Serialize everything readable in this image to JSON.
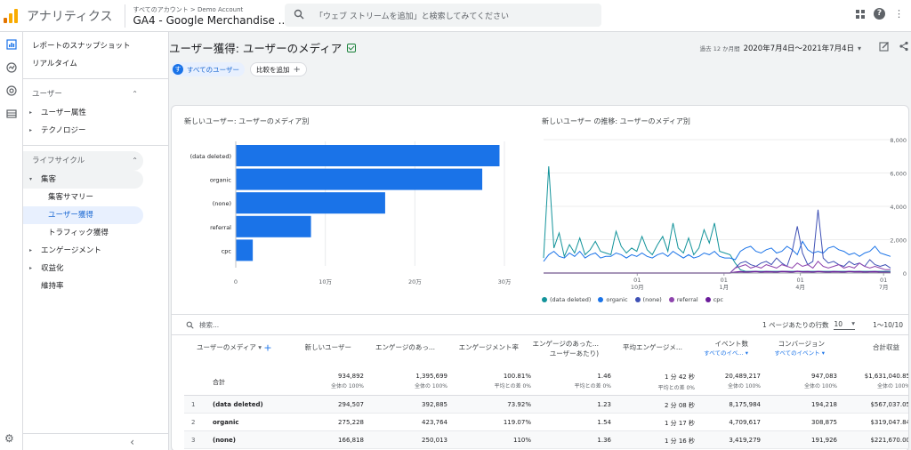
{
  "header": {
    "app_name": "アナリティクス",
    "account_path": "すべてのアカウント > Demo Account",
    "property": "GA4 - Google Merchandise ...",
    "search_placeholder": "「ウェブ ストリームを追加」と検索してみてください"
  },
  "sidebar": {
    "snapshot": "レポートのスナップショット",
    "realtime": "リアルタイム",
    "user_section": "ユーザー",
    "user_attr": "ユーザー属性",
    "tech": "テクノロジー",
    "lifecycle": "ライフサイクル",
    "acquisition": "集客",
    "acq_summary": "集客サマリー",
    "user_acq": "ユーザー獲得",
    "traffic_acq": "トラフィック獲得",
    "engagement": "エンゲージメント",
    "monetization": "収益化",
    "retention": "維持率"
  },
  "page": {
    "title": "ユーザー獲得: ユーザーのメディア",
    "date_prefix": "過去 12 か月間",
    "date_range": "2020年7月4日～2021年7月4日",
    "segment_badge": "す",
    "segment": "すべてのユーザー",
    "compare": "比較を追加"
  },
  "bar_chart": {
    "title": "新しいユーザー: ユーザーのメディア別"
  },
  "line_chart": {
    "title": "新しいユーザー の推移: ユーザーのメディア別"
  },
  "chart_data": [
    {
      "type": "bar",
      "orientation": "horizontal",
      "categories": [
        "(data deleted)",
        "organic",
        "(none)",
        "referral",
        "cpc"
      ],
      "values": [
        294507,
        275228,
        166818,
        84000,
        19000
      ],
      "x_ticks": [
        "0",
        "10万",
        "20万",
        "30万"
      ],
      "xlim": [
        0,
        300000
      ],
      "color": "#1a73e8"
    },
    {
      "type": "line",
      "y_ticks": [
        "8,000",
        "6,000",
        "4,000",
        "2,000",
        "0"
      ],
      "ylim": [
        0,
        8000
      ],
      "x_ticks": [
        {
          "top": "01",
          "bottom": "10月"
        },
        {
          "top": "01",
          "bottom": "1月"
        },
        {
          "top": "01",
          "bottom": "4月"
        },
        {
          "top": "01",
          "bottom": "7月"
        }
      ],
      "legend_position": "bottom",
      "series": [
        {
          "name": "(data deleted)",
          "color": "#12939a",
          "values": [
            900,
            6400,
            1500,
            2400,
            1000,
            1700,
            1200,
            2100,
            1100,
            1400,
            1900,
            1300,
            1200,
            1100,
            2500,
            1600,
            1200,
            1500,
            1300,
            2200,
            1400,
            1100,
            1700,
            2200,
            1300,
            3000,
            1500,
            1200,
            2100,
            1100,
            1500,
            2600,
            1800,
            3000,
            1300,
            1200,
            1100,
            600,
            200,
            100,
            100,
            100,
            100,
            100,
            100,
            100,
            100,
            100,
            100,
            100,
            100,
            100,
            100,
            100,
            100,
            100,
            100,
            100,
            100,
            100,
            100,
            100,
            100,
            100,
            100,
            100,
            100,
            100
          ]
        },
        {
          "name": "organic",
          "color": "#1a73e8",
          "values": [
            700,
            1100,
            1300,
            1000,
            900,
            1200,
            1000,
            1300,
            900,
            1100,
            1200,
            900,
            1000,
            1000,
            1200,
            1100,
            900,
            1100,
            1000,
            1200,
            1000,
            900,
            1100,
            1200,
            1000,
            1300,
            1100,
            900,
            1100,
            900,
            1000,
            1200,
            1100,
            1300,
            1000,
            900,
            900,
            800,
            1300,
            1500,
            1600,
            1300,
            1200,
            1400,
            1500,
            1200,
            1300,
            1600,
            1400,
            1100,
            1900,
            1400,
            1200,
            1300,
            1200,
            1500,
            1600,
            1400,
            1300,
            1100,
            1200,
            1000,
            1200,
            1300,
            1600,
            1200,
            1100,
            1000
          ]
        },
        {
          "name": "(none)",
          "color": "#3f51b5",
          "values": [
            0,
            0,
            0,
            0,
            0,
            0,
            0,
            0,
            0,
            0,
            0,
            0,
            0,
            0,
            0,
            0,
            0,
            0,
            0,
            0,
            0,
            0,
            0,
            0,
            0,
            0,
            0,
            0,
            0,
            0,
            0,
            0,
            0,
            0,
            0,
            0,
            0,
            300,
            600,
            700,
            500,
            400,
            600,
            700,
            500,
            900,
            600,
            400,
            1300,
            2800,
            1200,
            500,
            700,
            3800,
            900,
            600,
            700,
            500,
            400,
            700,
            500,
            600,
            400,
            800,
            500,
            400,
            500,
            300
          ]
        },
        {
          "name": "referral",
          "color": "#8e44ad",
          "values": [
            0,
            0,
            0,
            0,
            0,
            0,
            0,
            0,
            0,
            0,
            0,
            0,
            0,
            0,
            0,
            0,
            0,
            0,
            0,
            0,
            0,
            0,
            0,
            0,
            0,
            0,
            0,
            0,
            0,
            0,
            0,
            0,
            0,
            0,
            0,
            0,
            0,
            300,
            400,
            500,
            300,
            400,
            300,
            500,
            400,
            300,
            500,
            400,
            300,
            600,
            400,
            500,
            300,
            700,
            400,
            300,
            400,
            500,
            300,
            400,
            300,
            600,
            400,
            300,
            400,
            300,
            200,
            200
          ]
        },
        {
          "name": "cpc",
          "color": "#6a1b9a",
          "values": [
            0,
            0,
            0,
            0,
            0,
            0,
            0,
            0,
            0,
            0,
            0,
            0,
            0,
            0,
            0,
            0,
            0,
            0,
            0,
            0,
            0,
            0,
            0,
            0,
            0,
            0,
            0,
            0,
            0,
            0,
            0,
            0,
            0,
            0,
            0,
            0,
            0,
            50,
            80,
            60,
            70,
            90,
            60,
            80,
            70,
            60,
            90,
            80,
            60,
            100,
            70,
            80,
            60,
            90,
            70,
            60,
            80,
            70,
            60,
            90,
            70,
            80,
            60,
            70,
            80,
            60,
            50,
            40
          ]
        }
      ]
    }
  ],
  "table": {
    "search_placeholder": "検索...",
    "rows_per_page_label": "1 ページあたりの行数",
    "rows_per_page": "10",
    "range": "1〜10/10",
    "headers": {
      "dimension": "ユーザーのメディア",
      "new_users": "新しいユーザー",
      "engaged_sessions": "エンゲージのあっ...",
      "engagement_rate": "エンゲージメント率",
      "engaged_per_user_1": "エンゲージのあった...",
      "engaged_per_user_2": "ユーザーあたり)",
      "avg_engagement": "平均エンゲージメ...",
      "events": "イベント数",
      "events_sub": "すべてのイベ...",
      "conversions": "コンバージョン",
      "conversions_sub": "すべてのイベント",
      "revenue": "合計収益"
    },
    "total": {
      "label": "合計",
      "new_users": "934,892",
      "new_users_pct": "全体の 100%",
      "engaged_sessions": "1,395,699",
      "engaged_sessions_pct": "全体の 100%",
      "engagement_rate": "100.81%",
      "engagement_rate_pct": "平均との差 0%",
      "engaged_per_user": "1.46",
      "engaged_per_user_pct": "平均との差 0%",
      "avg_engagement": "1 分 42 秒",
      "avg_engagement_pct": "平均との差 0%",
      "events": "20,489,217",
      "events_pct": "全体の 100%",
      "conversions": "947,083",
      "conversions_pct": "全体の 100%",
      "revenue": "$1,631,040.85",
      "revenue_pct": "全体の 100%"
    },
    "rows": [
      {
        "idx": "1",
        "dim": "(data deleted)",
        "new_users": "294,507",
        "engaged_sessions": "392,885",
        "engagement_rate": "73.92%",
        "engaged_per_user": "1.23",
        "avg_engagement": "2 分 08 秒",
        "events": "8,175,984",
        "conversions": "194,218",
        "revenue": "$567,037.05"
      },
      {
        "idx": "2",
        "dim": "organic",
        "new_users": "275,228",
        "engaged_sessions": "423,764",
        "engagement_rate": "119.07%",
        "engaged_per_user": "1.54",
        "avg_engagement": "1 分 17 秒",
        "events": "4,709,617",
        "conversions": "308,875",
        "revenue": "$319,047.84"
      },
      {
        "idx": "3",
        "dim": "(none)",
        "new_users": "166,818",
        "engaged_sessions": "250,013",
        "engagement_rate": "110%",
        "engaged_per_user": "1.36",
        "avg_engagement": "1 分 16 秒",
        "events": "3,419,279",
        "conversions": "191,926",
        "revenue": "$221,670.00"
      }
    ]
  }
}
